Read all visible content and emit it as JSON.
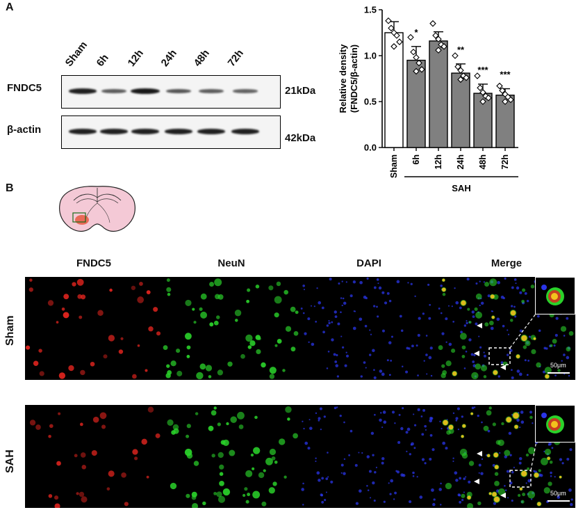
{
  "panel_a": {
    "letter": "A",
    "lanes": [
      "Sham",
      "6h",
      "12h",
      "24h",
      "48h",
      "72h"
    ],
    "proteins": [
      {
        "name": "FNDC5",
        "kda": "21kDa",
        "band_intensity": [
          0.9,
          0.5,
          0.95,
          0.55,
          0.5,
          0.45
        ]
      },
      {
        "name": "β-actin",
        "kda": "42kDa",
        "band_intensity": [
          0.9,
          0.9,
          0.9,
          0.9,
          0.9,
          0.9
        ]
      }
    ]
  },
  "chart_data": {
    "type": "bar",
    "categories": [
      "Sham",
      "6h",
      "12h",
      "24h",
      "48h",
      "72h"
    ],
    "values": [
      1.25,
      0.95,
      1.16,
      0.81,
      0.59,
      0.57
    ],
    "errors": [
      0.12,
      0.15,
      0.1,
      0.1,
      0.1,
      0.07
    ],
    "significance": [
      "",
      "*",
      "",
      "**",
      "***",
      "***"
    ],
    "points": [
      [
        1.38,
        1.3,
        1.25,
        1.22,
        1.15,
        1.1
      ],
      [
        1.2,
        1.04,
        0.98,
        0.92,
        0.85,
        0.83
      ],
      [
        1.35,
        1.22,
        1.18,
        1.12,
        1.1,
        1.06
      ],
      [
        1.0,
        0.88,
        0.84,
        0.78,
        0.76,
        0.74
      ],
      [
        0.78,
        0.65,
        0.6,
        0.56,
        0.54,
        0.5
      ],
      [
        0.67,
        0.62,
        0.58,
        0.55,
        0.52,
        0.5
      ]
    ],
    "bar_colors": [
      "#ffffff",
      "#808080",
      "#808080",
      "#808080",
      "#808080",
      "#808080"
    ],
    "ylabel_line1": "Relative density",
    "ylabel_line2": "(FNDC5/β-actin)",
    "ylim": [
      0,
      1.5
    ],
    "yticks": [
      "0.0",
      "0.5",
      "1.0",
      "1.5"
    ],
    "group_label": "SAH",
    "grid": false
  },
  "panel_b": {
    "letter": "B",
    "columns": [
      "FNDC5",
      "NeuN",
      "DAPI",
      "Merge"
    ],
    "rows": [
      "Sham",
      "SAH"
    ],
    "scale_bar": "50μm",
    "channel_colors": {
      "FNDC5": "#e0241e",
      "NeuN": "#2ad12a",
      "DAPI": "#2a35e8"
    }
  }
}
